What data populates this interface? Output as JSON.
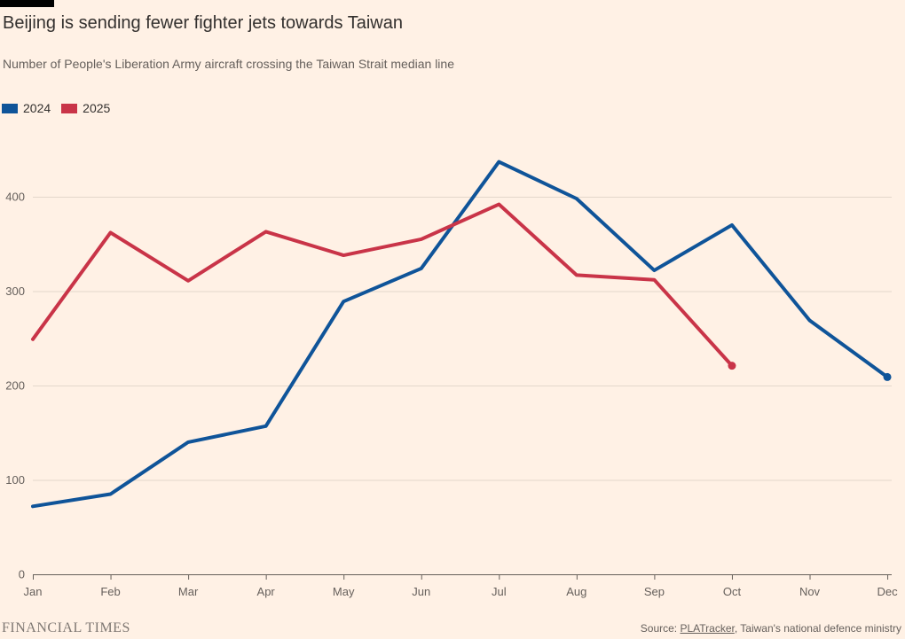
{
  "header": {
    "title": "Beijing is sending fewer fighter jets towards Taiwan",
    "subtitle": "Number of People's Liberation Army aircraft crossing the Taiwan Strait median line"
  },
  "legend": [
    {
      "label": "2024",
      "color": "#0f5499"
    },
    {
      "label": "2025",
      "color": "#c93448"
    }
  ],
  "footer": {
    "brand": "FINANCIAL TIMES",
    "source_prefix": "Source: ",
    "source_link": "PLATracker",
    "source_suffix": ", Taiwan's national defence ministry"
  },
  "colors": {
    "background": "#fff1e5",
    "accent_bar": "#000000",
    "gridline": "#e3d7cb",
    "axis": "#66605a",
    "text_primary": "#33302e",
    "text_secondary": "#66605c",
    "series_2024": "#0f5499",
    "series_2025": "#c93448"
  },
  "chart_data": {
    "type": "line",
    "title": "Beijing is sending fewer fighter jets towards Taiwan",
    "subtitle": "Number of People's Liberation Army aircraft crossing the Taiwan Strait median line",
    "categories": [
      "Jan",
      "Feb",
      "Mar",
      "Apr",
      "May",
      "Jun",
      "Jul",
      "Aug",
      "Sep",
      "Oct",
      "Nov",
      "Dec"
    ],
    "series": [
      {
        "name": "2024",
        "color": "#0f5499",
        "values": [
          72,
          85,
          140,
          157,
          289,
          324,
          437,
          398,
          322,
          370,
          269,
          209
        ],
        "end_dot": true
      },
      {
        "name": "2025",
        "color": "#c93448",
        "values": [
          249,
          362,
          311,
          363,
          338,
          355,
          392,
          317,
          312,
          221
        ],
        "end_dot": true
      }
    ],
    "xlabel": "",
    "ylabel": "",
    "ylim": [
      0,
      450
    ],
    "yticks": [
      0,
      100,
      200,
      300,
      400
    ],
    "grid": "horizontal",
    "legend_position": "top-left"
  }
}
